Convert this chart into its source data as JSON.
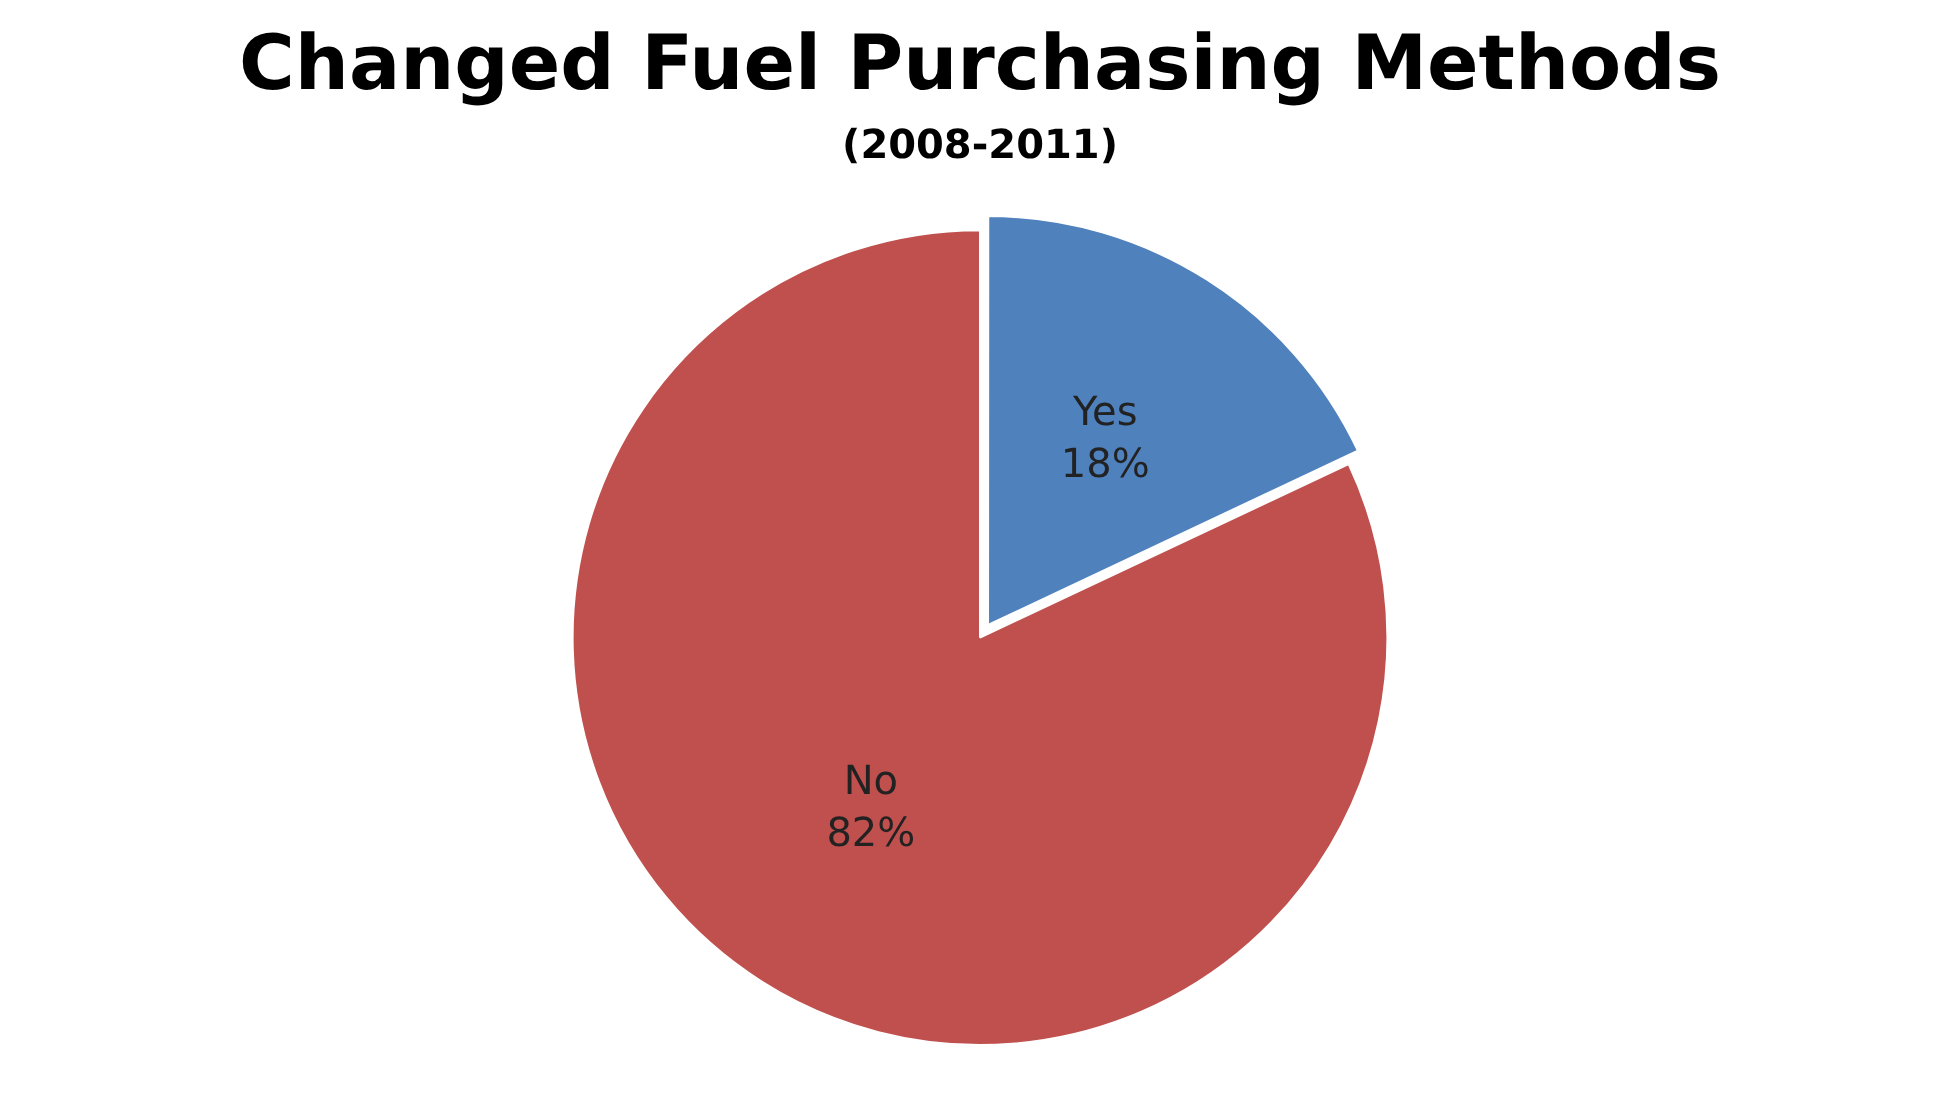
{
  "chart_data": {
    "type": "pie",
    "title": "Changed Fuel Purchasing Methods",
    "subtitle": "(2008-2011)",
    "categories": [
      "Yes",
      "No"
    ],
    "values": [
      18,
      82
    ],
    "colors": [
      "#4f81bd",
      "#c0504d"
    ],
    "value_labels": [
      "18%",
      "82%"
    ],
    "legend": false
  }
}
